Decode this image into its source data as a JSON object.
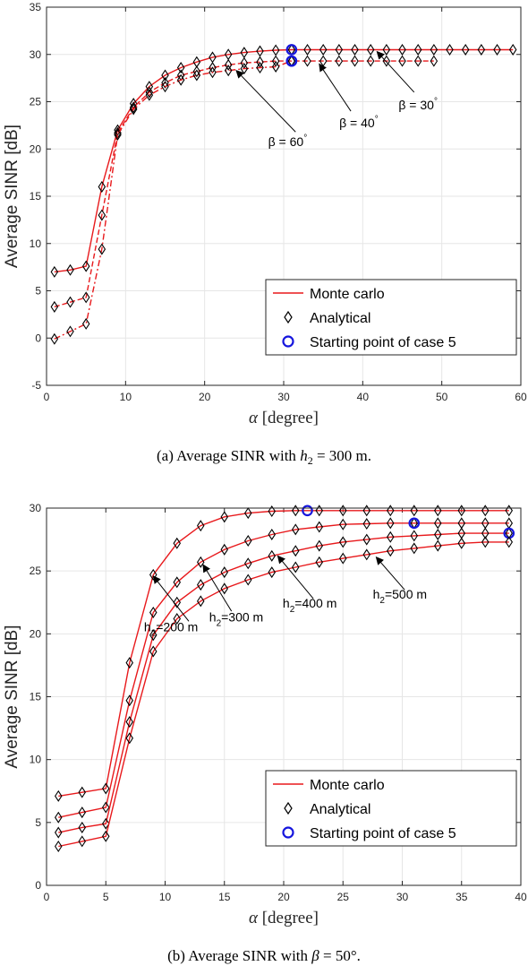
{
  "chart_data": [
    {
      "type": "line",
      "xlabel_symbol": "α",
      "xlabel_unit": "[degree]",
      "ylabel": "Average SINR [dB]",
      "xlim": [
        0,
        60
      ],
      "ylim": [
        -5,
        35
      ],
      "xticks": [
        "0",
        "10",
        "20",
        "30",
        "40",
        "50",
        "60"
      ],
      "yticks": [
        "-5",
        "0",
        "5",
        "10",
        "15",
        "20",
        "25",
        "30",
        "35"
      ],
      "grid": true,
      "legend_position": "bottom-right",
      "legend": [
        "Monte carlo",
        "Analytical",
        "Starting point of case 5"
      ],
      "caption": {
        "prefix": "(a) Average SINR with ",
        "var": "h",
        "sub": "2",
        "suffix": " = 300 m."
      },
      "series": [
        {
          "label_beta": "β = 30",
          "x": [
            1,
            3,
            5,
            7,
            9,
            11,
            13,
            15,
            17,
            19,
            21,
            23,
            25,
            27,
            29,
            31,
            33,
            35,
            37,
            39,
            41,
            43,
            45,
            47,
            49,
            51,
            53,
            55,
            57,
            59
          ],
          "y": [
            7.0,
            7.2,
            7.6,
            16.0,
            22.0,
            24.8,
            26.6,
            27.8,
            28.6,
            29.2,
            29.7,
            30.0,
            30.2,
            30.35,
            30.45,
            30.5,
            30.5,
            30.5,
            30.5,
            30.5,
            30.5,
            30.5,
            30.5,
            30.5,
            30.5,
            30.5,
            30.5,
            30.5,
            30.5,
            30.5
          ],
          "case5_x": 31,
          "case5_y": 30.5
        },
        {
          "label_beta": "β = 40",
          "x": [
            1,
            3,
            5,
            7,
            9,
            11,
            13,
            15,
            17,
            19,
            21,
            23,
            25,
            27,
            29,
            31,
            33,
            35,
            37,
            39,
            41,
            43,
            45,
            47,
            49
          ],
          "y": [
            3.3,
            3.8,
            4.3,
            13.0,
            21.7,
            24.4,
            26.0,
            27.0,
            27.8,
            28.2,
            28.6,
            28.9,
            29.1,
            29.2,
            29.3,
            29.3,
            29.3,
            29.3,
            29.3,
            29.3,
            29.3,
            29.3,
            29.3,
            29.3,
            29.3
          ],
          "case5_x": 31,
          "case5_y": 29.3
        },
        {
          "label_beta": "β = 60",
          "x": [
            1,
            3,
            5,
            7,
            9,
            11,
            13,
            15,
            17,
            19,
            21,
            23,
            25,
            27,
            29,
            31
          ],
          "y": [
            -0.1,
            0.7,
            1.5,
            9.4,
            21.5,
            24.2,
            25.7,
            26.6,
            27.3,
            27.8,
            28.1,
            28.3,
            28.5,
            28.6,
            28.7,
            29.3
          ],
          "case5_x": 31,
          "case5_y": 29.3
        }
      ],
      "annotations": [
        {
          "text": "β = 60",
          "sup": "°",
          "text_x": 30.5,
          "text_y": 20.3,
          "arrow_from": [
            31.5,
            21.8
          ],
          "arrow_to": [
            24.0,
            28.3
          ]
        },
        {
          "text": "β = 40",
          "sup": "°",
          "text_x": 39.5,
          "text_y": 22.3,
          "arrow_from": [
            38.5,
            24.0
          ],
          "arrow_to": [
            34.5,
            29.0
          ]
        },
        {
          "text": "β = 30",
          "sup": "°",
          "text_x": 47.0,
          "text_y": 24.2,
          "arrow_from": [
            46.5,
            26.0
          ],
          "arrow_to": [
            41.8,
            30.3
          ]
        }
      ]
    },
    {
      "type": "line",
      "xlabel_symbol": "α",
      "xlabel_unit": "[degree]",
      "ylabel": "Average SINR [dB]",
      "xlim": [
        0,
        40
      ],
      "ylim": [
        0,
        30
      ],
      "xticks": [
        "0",
        "5",
        "10",
        "15",
        "20",
        "25",
        "30",
        "35",
        "40"
      ],
      "yticks": [
        "0",
        "5",
        "10",
        "15",
        "20",
        "25",
        "30"
      ],
      "grid": true,
      "legend_position": "bottom-right",
      "legend": [
        "Monte carlo",
        "Analytical",
        "Starting point of case 5"
      ],
      "caption": {
        "prefix": "(b) Average SINR with ",
        "var": "β",
        "sub": "",
        "suffix": " = 50°."
      },
      "series": [
        {
          "label_h": "h",
          "label_sub": "2",
          "label_rest": "=200 m",
          "x": [
            1,
            3,
            5,
            7,
            9,
            11,
            13,
            15,
            17,
            19,
            21,
            23,
            25,
            27,
            29,
            31,
            33,
            35,
            37,
            39
          ],
          "y": [
            7.1,
            7.4,
            7.7,
            17.7,
            24.7,
            27.2,
            28.6,
            29.3,
            29.6,
            29.75,
            29.8,
            29.8,
            29.8,
            29.8,
            29.8,
            29.8,
            29.8,
            29.8,
            29.8,
            29.8
          ],
          "case5_x": 22,
          "case5_y": 29.8
        },
        {
          "label_h": "h",
          "label_sub": "2",
          "label_rest": "=300 m",
          "x": [
            1,
            3,
            5,
            7,
            9,
            11,
            13,
            15,
            17,
            19,
            21,
            23,
            25,
            27,
            29,
            31,
            33,
            35,
            37,
            39
          ],
          "y": [
            5.4,
            5.8,
            6.2,
            14.7,
            21.7,
            24.1,
            25.7,
            26.7,
            27.4,
            27.9,
            28.3,
            28.5,
            28.7,
            28.75,
            28.8,
            28.8,
            28.8,
            28.8,
            28.8,
            28.8
          ],
          "case5_x": 31,
          "case5_y": 28.8
        },
        {
          "label_h": "h",
          "label_sub": "2",
          "label_rest": "=400 m",
          "x": [
            1,
            3,
            5,
            7,
            9,
            11,
            13,
            15,
            17,
            19,
            21,
            23,
            25,
            27,
            29,
            31,
            33,
            35,
            37,
            39
          ],
          "y": [
            4.2,
            4.6,
            4.9,
            13.0,
            19.9,
            22.5,
            23.9,
            24.9,
            25.6,
            26.2,
            26.6,
            27.0,
            27.3,
            27.5,
            27.7,
            27.8,
            27.9,
            28.0,
            28.0,
            28.0
          ],
          "case5_x": 39,
          "case5_y": 28.0
        },
        {
          "label_h": "h",
          "label_sub": "2",
          "label_rest": "=500 m",
          "x": [
            1,
            3,
            5,
            7,
            9,
            11,
            13,
            15,
            17,
            19,
            21,
            23,
            25,
            27,
            29,
            31,
            33,
            35,
            37,
            39
          ],
          "y": [
            3.1,
            3.5,
            3.9,
            11.7,
            18.6,
            21.2,
            22.6,
            23.6,
            24.3,
            24.9,
            25.3,
            25.7,
            26.0,
            26.3,
            26.6,
            26.8,
            27.0,
            27.2,
            27.3,
            27.3
          ]
        }
      ],
      "annotations": [
        {
          "series": 0,
          "text_x": 10.5,
          "text_y": 20.2,
          "arrow_from": [
            12.0,
            21.0
          ],
          "arrow_to": [
            9.0,
            24.6
          ]
        },
        {
          "series": 1,
          "text_x": 16.0,
          "text_y": 21.0,
          "arrow_from": [
            15.6,
            21.8
          ],
          "arrow_to": [
            13.2,
            25.5
          ]
        },
        {
          "series": 2,
          "text_x": 22.2,
          "text_y": 22.1,
          "arrow_from": [
            22.5,
            22.8
          ],
          "arrow_to": [
            19.5,
            26.2
          ]
        },
        {
          "series": 3,
          "text_x": 29.8,
          "text_y": 22.8,
          "arrow_from": [
            30.2,
            23.5
          ],
          "arrow_to": [
            27.8,
            26.1
          ]
        }
      ]
    }
  ],
  "colors": {
    "line": "#e8191c",
    "marker": "#000000",
    "case5": "#1515dd",
    "grid": "#e6e6e6",
    "axis": "#262626"
  }
}
